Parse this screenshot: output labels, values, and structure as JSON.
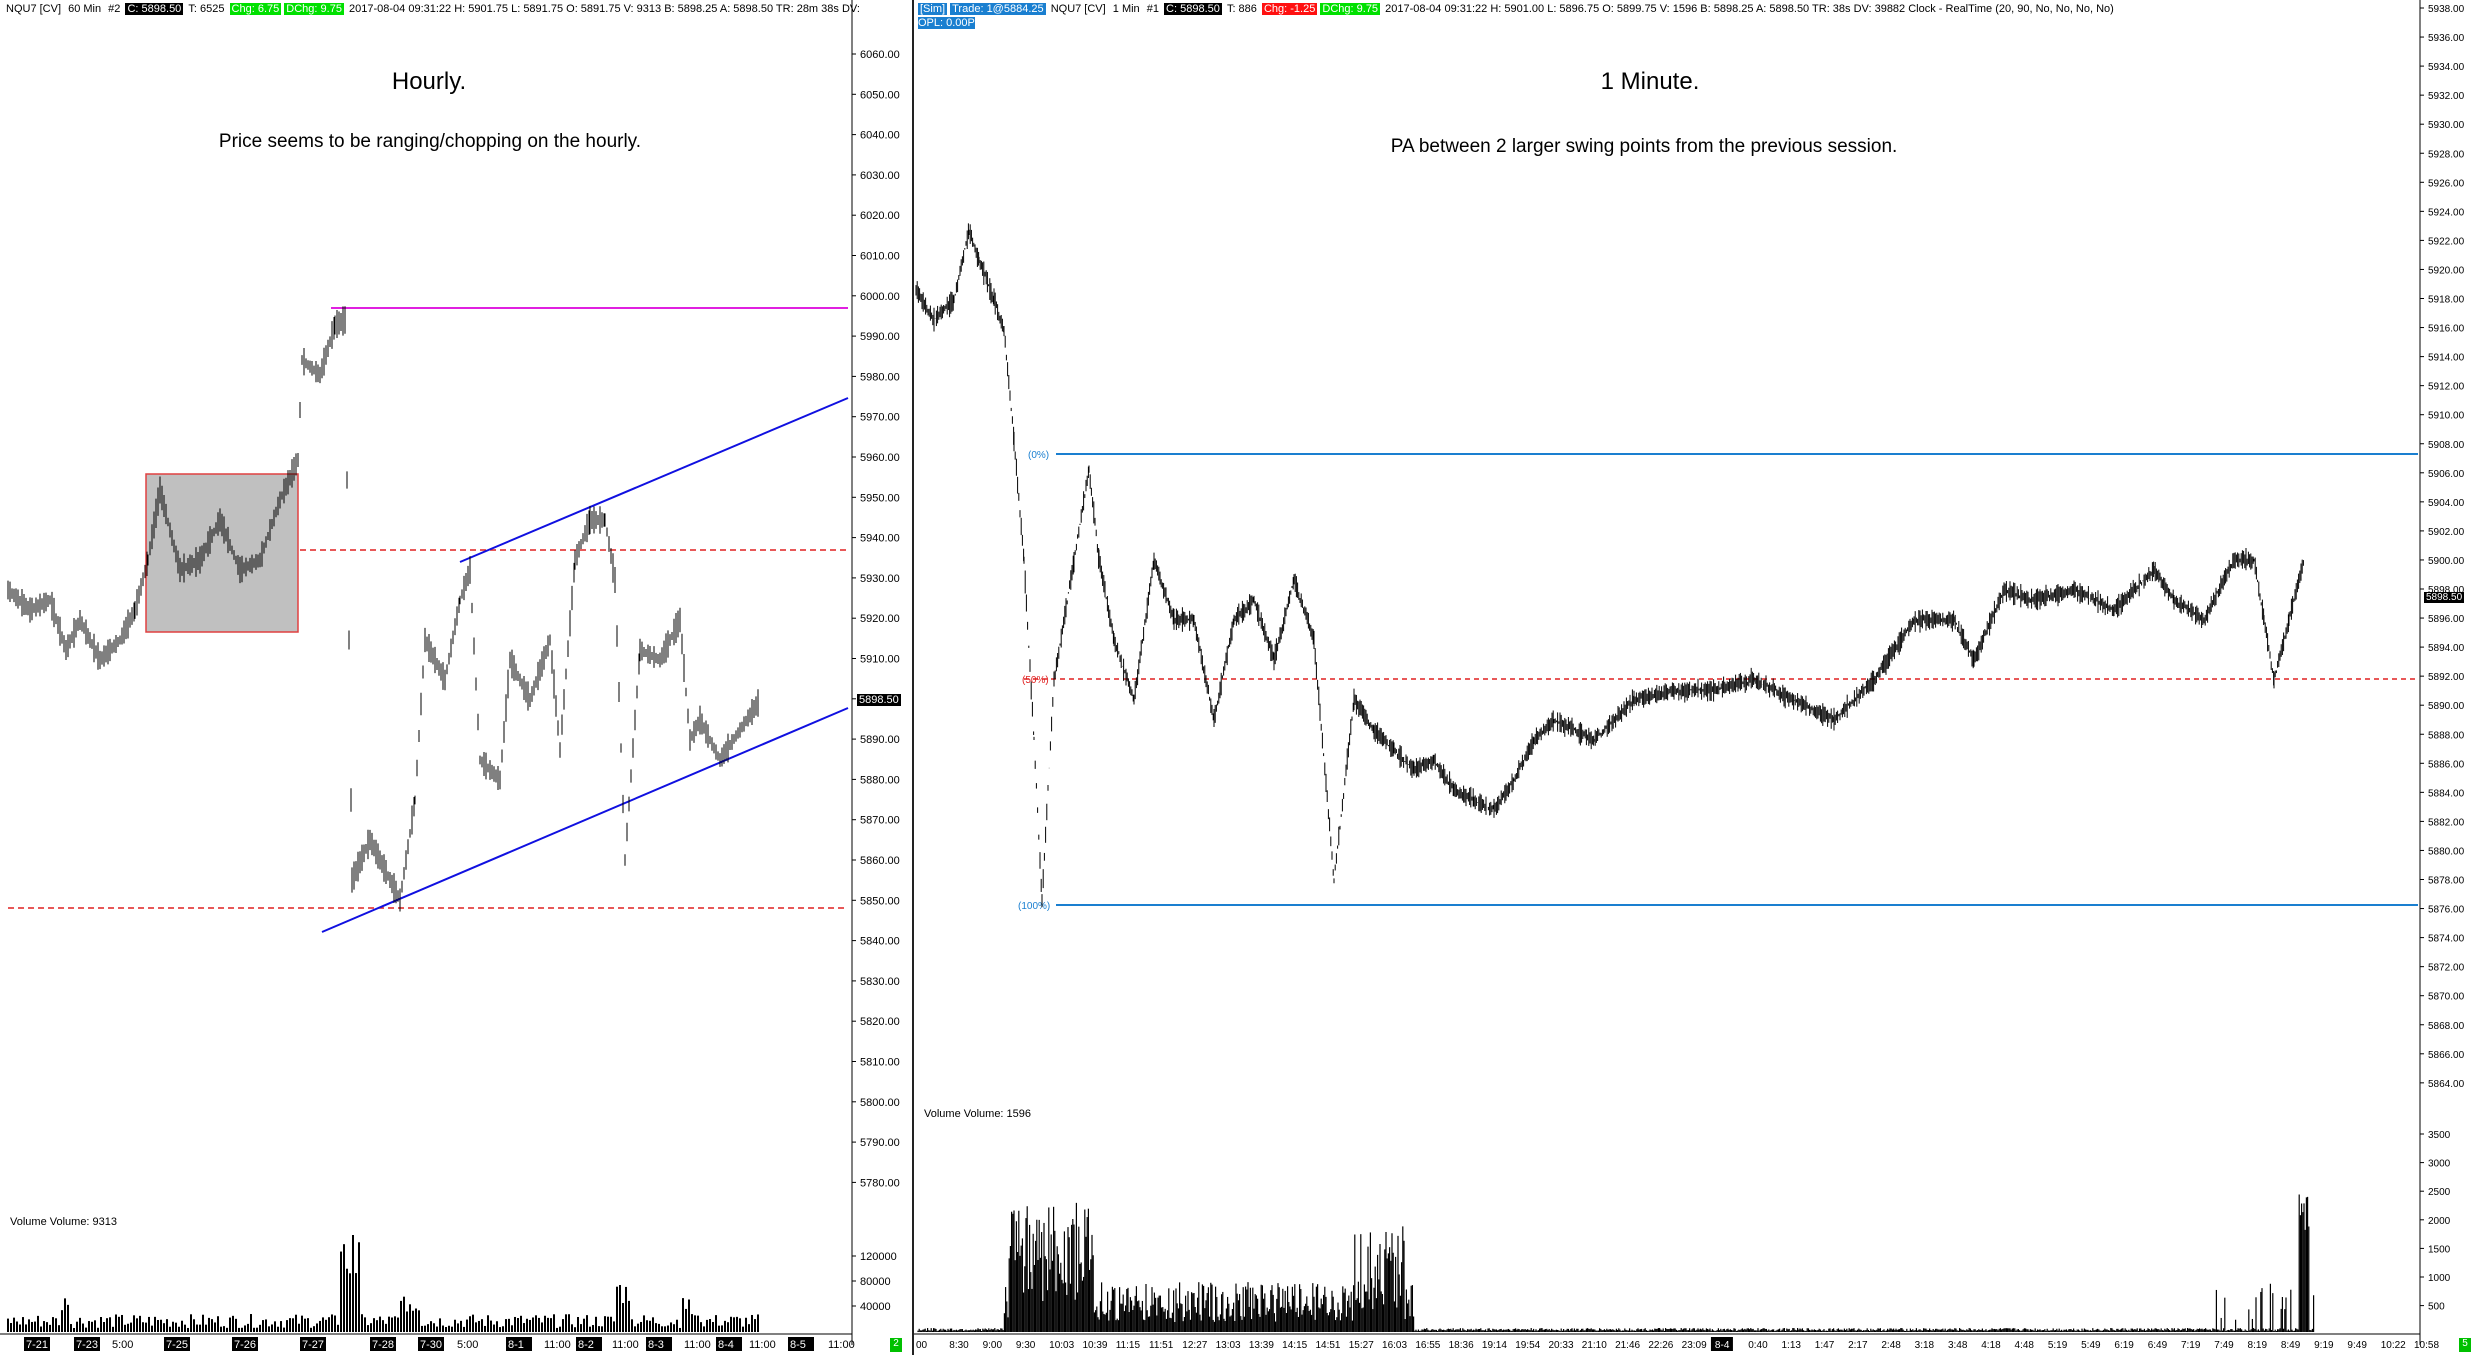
{
  "left": {
    "header": {
      "symbol": "NQU7 [CV]",
      "interval": "60 Min",
      "chart_no": "#2",
      "close": "C: 5898.50",
      "ticks": "T: 6525",
      "chg": "Chg: 6.75",
      "dchg": "DChg: 9.75",
      "info": "2017-08-04 09:31:22 H: 5901.75 L: 5891.75 O: 5891.75 V: 9313 B: 5898.25 A: 5898.50 TR: 28m 38s DV:"
    },
    "title": "Hourly.",
    "note": "Price seems to be ranging/chopping on the hourly.",
    "volume_label": "Volume  Volume: 9313",
    "last_price": "5898.50",
    "price_ticks": [
      "6060.00",
      "6050.00",
      "6040.00",
      "6030.00",
      "6020.00",
      "6010.00",
      "6000.00",
      "5990.00",
      "5980.00",
      "5970.00",
      "5960.00",
      "5950.00",
      "5940.00",
      "5930.00",
      "5920.00",
      "5910.00",
      "5900.00",
      "5890.00",
      "5880.00",
      "5870.00",
      "5860.00",
      "5850.00",
      "5840.00",
      "5830.00",
      "5820.00",
      "5810.00",
      "5800.00",
      "5790.00",
      "5780.00"
    ],
    "volume_ticks": [
      "120000",
      "80000",
      "40000"
    ],
    "time_labels": [
      "7-21",
      "7-23",
      "5:00",
      "7-25",
      "7-26",
      "7-27",
      "7-28",
      "7-30",
      "5:00",
      "8-1",
      "11:00",
      "8-2",
      "11:00",
      "8-3",
      "11:00",
      "8-4",
      "11:00",
      "8-5",
      "11:00"
    ],
    "corner_badge": "2",
    "colors": {
      "magenta": "#e020e0",
      "blue": "#1010e0",
      "red_dash": "#e02020",
      "box_fill": "#c0c0c0",
      "box_border": "#e04040"
    }
  },
  "right": {
    "header": {
      "account": "[Sim]",
      "trade": "Trade: 1@5884.25",
      "symbol": "NQU7 [CV]",
      "interval": "1 Min",
      "chart_no": "#1",
      "close": "C: 5898.50",
      "ticks": "T: 886",
      "chg": "Chg: -1.25",
      "dchg": "DChg: 9.75",
      "info": "2017-08-04 09:31:22 H: 5901.00 L: 5896.75 O: 5899.75 V: 1596 B: 5898.25 A: 5898.50 TR: 38s DV: 39882 Clock - RealTime  (20, 90, No, No, No, No)",
      "opl": "OPL: 0.00P"
    },
    "title": "1 Minute.",
    "note": "PA between 2 larger swing points from the previous session.",
    "volume_label": "Volume  Volume: 1596",
    "last_price": "5898.50",
    "fib": {
      "level_0": "(0%)",
      "level_50": "(50%)",
      "level_100": "(100%)"
    },
    "price_ticks": [
      "5938.00",
      "5936.00",
      "5934.00",
      "5932.00",
      "5930.00",
      "5928.00",
      "5926.00",
      "5924.00",
      "5922.00",
      "5920.00",
      "5918.00",
      "5916.00",
      "5914.00",
      "5912.00",
      "5910.00",
      "5908.00",
      "5906.00",
      "5904.00",
      "5902.00",
      "5900.00",
      "5898.00",
      "5896.00",
      "5894.00",
      "5892.00",
      "5890.00",
      "5888.00",
      "5886.00",
      "5884.00",
      "5882.00",
      "5880.00",
      "5878.00",
      "5876.00",
      "5874.00",
      "5872.00",
      "5870.00",
      "5868.00",
      "5866.00",
      "5864.00"
    ],
    "volume_ticks": [
      "3500",
      "3000",
      "2500",
      "2000",
      "1500",
      "1000",
      "500"
    ],
    "time_labels": [
      "00",
      "8:30",
      "9:00",
      "9:30",
      "10:03",
      "10:39",
      "11:15",
      "11:51",
      "12:27",
      "13:03",
      "13:39",
      "14:15",
      "14:51",
      "15:27",
      "16:03",
      "16:55",
      "18:36",
      "19:14",
      "19:54",
      "20:33",
      "21:10",
      "21:46",
      "22:26",
      "23:09",
      "8-4",
      "0:40",
      "1:13",
      "1:47",
      "2:17",
      "2:48",
      "3:18",
      "3:48",
      "4:18",
      "4:48",
      "5:19",
      "5:49",
      "6:19",
      "6:49",
      "7:19",
      "7:49",
      "8:19",
      "8:49",
      "9:19",
      "9:49",
      "10:22",
      "10:58"
    ],
    "corner_badge": "5",
    "colors": {
      "fib_blue": "#1a7fd0",
      "red_dash": "#e02020"
    }
  }
}
